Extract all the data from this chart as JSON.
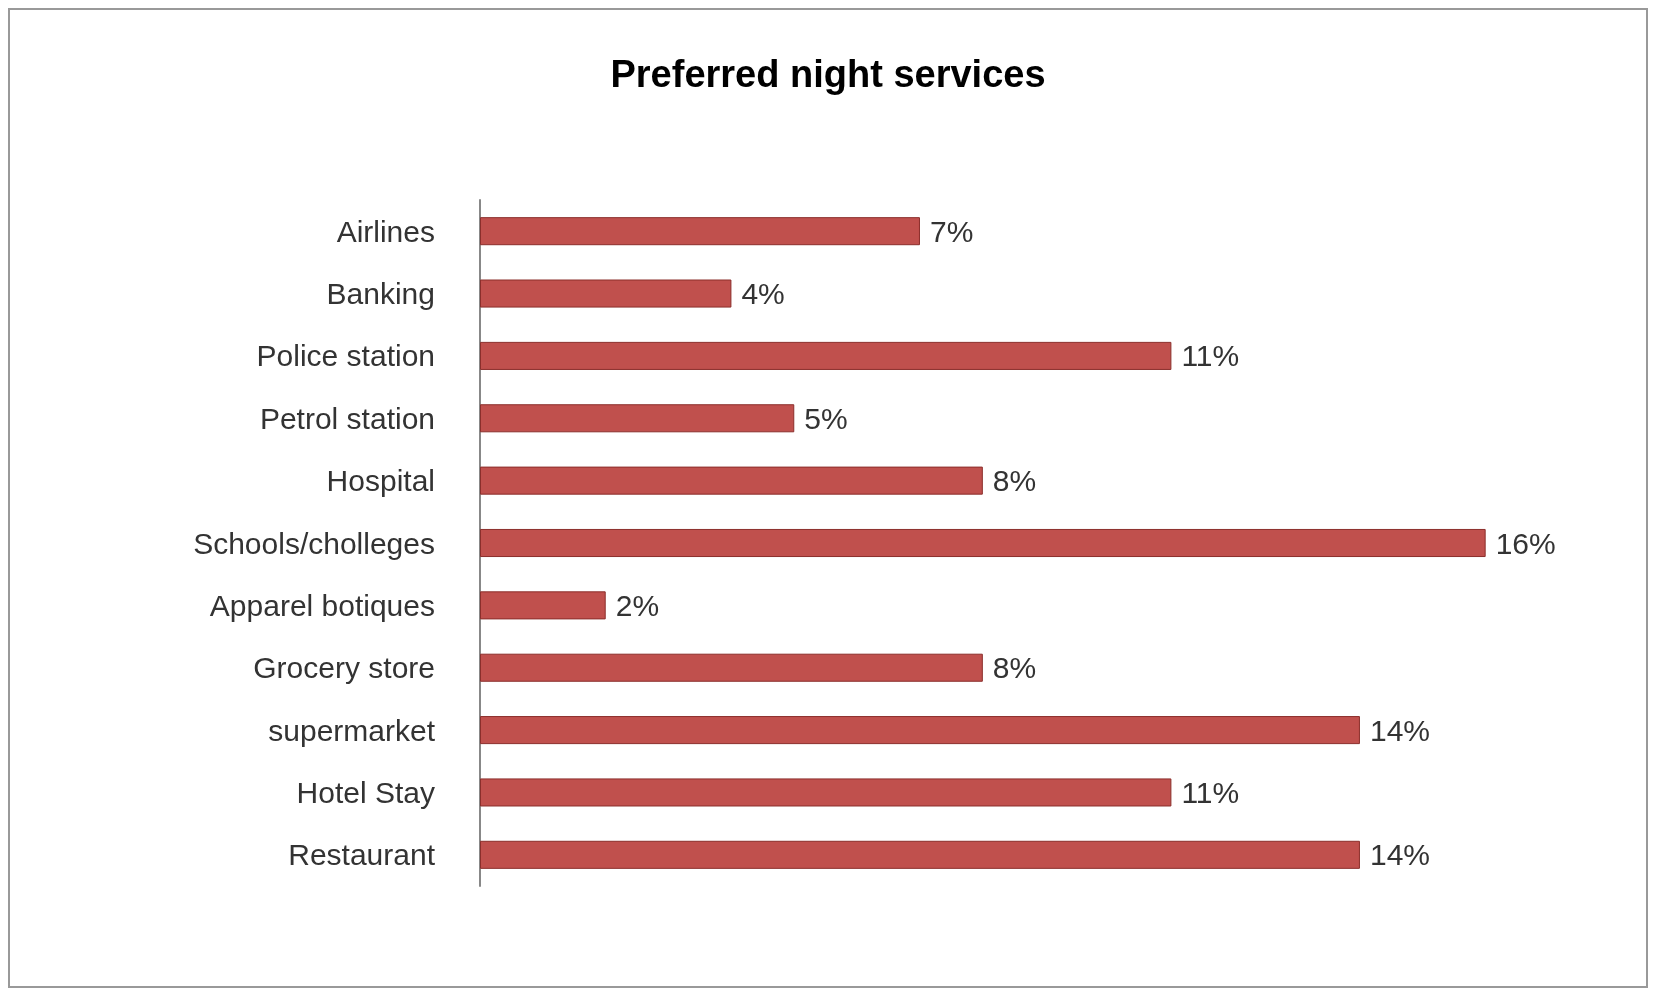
{
  "chart_data": {
    "type": "bar",
    "orientation": "horizontal",
    "title": "Preferred night services",
    "categories": [
      "Airlines",
      "Banking",
      "Police station",
      "Petrol station",
      "Hospital",
      "Schools/cholleges",
      "Apparel botiques",
      "Grocery store",
      "supermarket",
      "Hotel Stay",
      "Restaurant"
    ],
    "values": [
      7,
      4,
      11,
      5,
      8,
      16,
      2,
      8,
      14,
      11,
      14
    ],
    "value_labels": [
      "7%",
      "4%",
      "11%",
      "5%",
      "8%",
      "16%",
      "2%",
      "8%",
      "14%",
      "11%",
      "14%"
    ],
    "color": "#c0504d"
  }
}
